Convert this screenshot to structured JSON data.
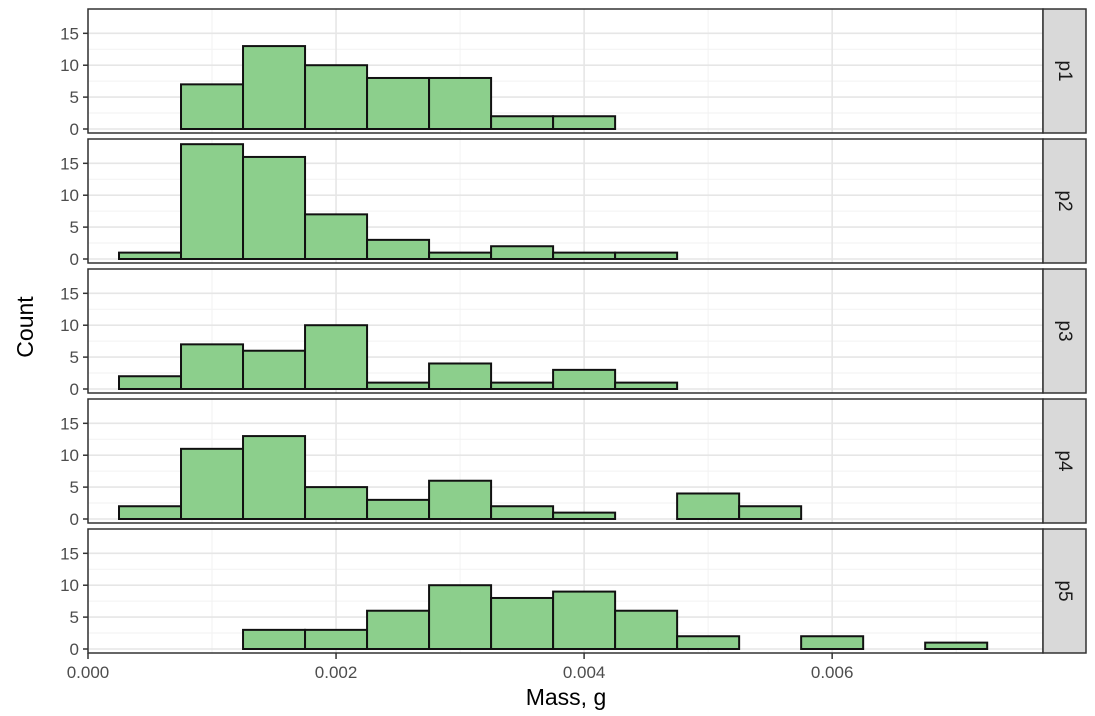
{
  "chart_data": {
    "type": "bar",
    "chart_kind": "faceted-histogram",
    "xlabel": "Mass, g",
    "ylabel": "Count",
    "xlim": [
      0.0,
      0.0077
    ],
    "ylim": [
      0,
      18.5
    ],
    "x_ticks": [
      0.0,
      0.002,
      0.004,
      0.006
    ],
    "x_tick_labels": [
      "0.000",
      "0.002",
      "0.004",
      "0.006"
    ],
    "y_ticks": [
      0,
      5,
      10,
      15
    ],
    "y_tick_labels": [
      "0",
      "5",
      "10",
      "15"
    ],
    "bin_width": 0.0005,
    "bin_centers": [
      0.0005,
      0.001,
      0.0015,
      0.002,
      0.0025,
      0.003,
      0.0035,
      0.004,
      0.0045,
      0.005,
      0.0055,
      0.006,
      0.0065,
      0.007
    ],
    "grid": true,
    "bar_fill": "#8ccf8c",
    "bar_stroke": "#111111",
    "strip_fill": "#d9d9d9",
    "facets": [
      {
        "label": "p1",
        "counts": [
          0,
          7,
          13,
          10,
          8,
          8,
          2,
          2,
          0,
          0,
          0,
          0,
          0,
          0
        ]
      },
      {
        "label": "p2",
        "counts": [
          1,
          18,
          16,
          7,
          3,
          1,
          2,
          1,
          1,
          0,
          0,
          0,
          0,
          0
        ]
      },
      {
        "label": "p3",
        "counts": [
          2,
          7,
          6,
          10,
          1,
          4,
          1,
          3,
          1,
          0,
          0,
          0,
          0,
          0
        ]
      },
      {
        "label": "p4",
        "counts": [
          2,
          11,
          13,
          5,
          3,
          6,
          2,
          1,
          0,
          4,
          2,
          0,
          0,
          0
        ]
      },
      {
        "label": "p5",
        "counts": [
          0,
          0,
          3,
          3,
          6,
          10,
          8,
          9,
          6,
          2,
          0,
          2,
          0,
          1
        ]
      }
    ]
  }
}
